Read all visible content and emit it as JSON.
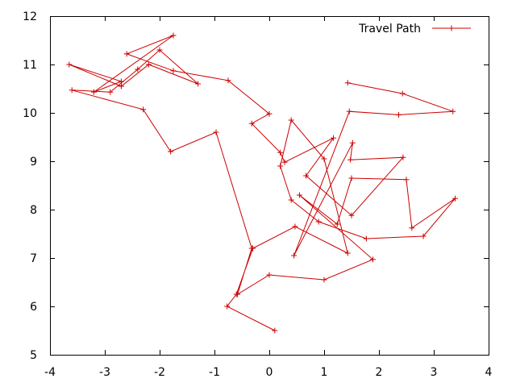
{
  "chart_data": {
    "type": "line",
    "title": "",
    "xlabel": "",
    "ylabel": "",
    "xlim": [
      -4,
      4
    ],
    "ylim": [
      5,
      12
    ],
    "xticks": [
      -4,
      -3,
      -2,
      -1,
      0,
      1,
      2,
      3,
      4
    ],
    "yticks": [
      5,
      6,
      7,
      8,
      9,
      10,
      11,
      12
    ],
    "grid": false,
    "legend_position": "top-right",
    "series": [
      {
        "name": "Travel Path",
        "color": "#cc0000",
        "marker": "plus",
        "x": [
          0.1,
          -0.77,
          -0.6,
          -0.3,
          0.47,
          1.43,
          1.0,
          0.4,
          0.2,
          0.4,
          0.9,
          1.77,
          2.81,
          3.39,
          2.6,
          2.5,
          1.5,
          1.24,
          0.55,
          1.89,
          1.0,
          0.0,
          -0.58,
          -0.32,
          -0.97,
          -1.8,
          -2.3,
          -3.6,
          -2.9,
          -2.4,
          -2.0,
          -1.3,
          -2.2,
          -2.7,
          -3.65,
          -2.7,
          -3.2,
          -1.75,
          -2.6,
          -1.75,
          -0.75,
          0.0,
          -0.32,
          0.2,
          0.28,
          1.17,
          0.67,
          1.5,
          2.44,
          1.48,
          1.52,
          0.45,
          1.46,
          2.36,
          3.35,
          2.43,
          1.43
        ],
        "y": [
          5.5,
          6.0,
          6.25,
          7.2,
          7.65,
          7.1,
          9.05,
          9.85,
          8.9,
          8.2,
          7.75,
          7.4,
          7.45,
          8.23,
          7.62,
          8.62,
          8.65,
          7.7,
          8.3,
          6.97,
          6.55,
          6.65,
          6.25,
          7.2,
          9.6,
          9.2,
          10.07,
          10.47,
          10.43,
          10.9,
          11.3,
          10.6,
          11.0,
          10.55,
          11.0,
          10.65,
          10.43,
          11.6,
          11.22,
          10.87,
          10.67,
          9.98,
          9.78,
          9.18,
          8.98,
          9.48,
          8.7,
          7.88,
          9.08,
          9.03,
          9.38,
          7.05,
          10.03,
          9.96,
          10.03,
          10.4,
          10.62
        ]
      }
    ]
  }
}
